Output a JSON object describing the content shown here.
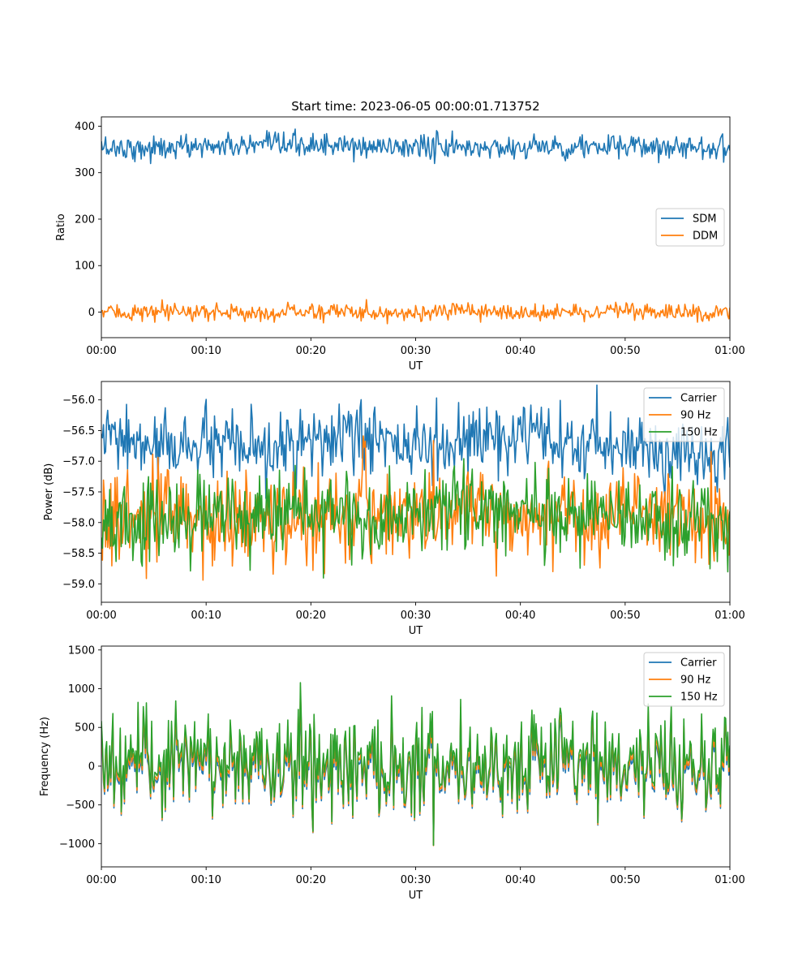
{
  "figure": {
    "title": "Start time: 2023-06-05 00:00:01.713752"
  },
  "colors": {
    "blue": "#1f77b4",
    "orange": "#ff7f0e",
    "green": "#2ca02c"
  },
  "chart_data": [
    {
      "type": "line",
      "title": "Start time: 2023-06-05 00:00:01.713752",
      "xlabel": "UT",
      "ylabel": "Ratio",
      "x_unit": "minutes after 00:00",
      "xlim": [
        0,
        60
      ],
      "ylim": [
        -55,
        420
      ],
      "xticks": [
        0,
        10,
        20,
        30,
        40,
        50,
        60
      ],
      "xtick_labels": [
        "00:00",
        "00:10",
        "00:20",
        "00:30",
        "00:40",
        "00:50",
        "01:00"
      ],
      "yticks": [
        0,
        100,
        200,
        300,
        400
      ],
      "ytick_labels": [
        "0",
        "100",
        "200",
        "300",
        "400"
      ],
      "grid": false,
      "legend": "center-right",
      "series": [
        {
          "name": "SDM",
          "color": "#1f77b4",
          "x": [
            0,
            5,
            10,
            15,
            20,
            25,
            30,
            35,
            40,
            45,
            50,
            55,
            60
          ],
          "values": [
            355,
            352,
            358,
            356,
            360,
            354,
            357,
            353,
            355,
            356,
            354,
            357,
            352
          ]
        },
        {
          "name": "DDM",
          "color": "#ff7f0e",
          "x": [
            0,
            5,
            10,
            15,
            20,
            25,
            30,
            35,
            40,
            45,
            50,
            55,
            60
          ],
          "values": [
            0,
            -2,
            1,
            -3,
            2,
            0,
            -1,
            1,
            -2,
            0,
            1,
            -3,
            2
          ]
        }
      ]
    },
    {
      "type": "line",
      "xlabel": "UT",
      "ylabel": "Power (dB)",
      "x_unit": "minutes after 00:00",
      "xlim": [
        0,
        60
      ],
      "ylim": [
        -59.3,
        -55.7
      ],
      "xticks": [
        0,
        10,
        20,
        30,
        40,
        50,
        60
      ],
      "xtick_labels": [
        "00:00",
        "00:10",
        "00:20",
        "00:30",
        "00:40",
        "00:50",
        "01:00"
      ],
      "yticks": [
        -59.0,
        -58.5,
        -58.0,
        -57.5,
        -57.0,
        -56.5,
        -56.0
      ],
      "ytick_labels": [
        "−59.0",
        "−58.5",
        "−58.0",
        "−57.5",
        "−57.0",
        "−56.5",
        "−56.0"
      ],
      "grid": false,
      "legend": "top-right",
      "series": [
        {
          "name": "Carrier",
          "color": "#1f77b4",
          "x": [
            0,
            5,
            10,
            15,
            20,
            25,
            30,
            35,
            40,
            45,
            50,
            55,
            60
          ],
          "values": [
            -56.6,
            -56.8,
            -56.7,
            -56.9,
            -56.7,
            -56.6,
            -56.8,
            -56.7,
            -56.6,
            -56.8,
            -56.7,
            -56.9,
            -56.9
          ]
        },
        {
          "name": "90 Hz",
          "color": "#ff7f0e",
          "x": [
            0,
            5,
            10,
            15,
            20,
            25,
            30,
            35,
            40,
            45,
            50,
            55,
            60
          ],
          "values": [
            -58.0,
            -57.9,
            -58.0,
            -57.9,
            -58.0,
            -57.8,
            -57.9,
            -57.8,
            -57.9,
            -57.8,
            -57.9,
            -57.9,
            -58.0
          ]
        },
        {
          "name": "150 Hz",
          "color": "#2ca02c",
          "x": [
            0,
            5,
            10,
            15,
            20,
            25,
            30,
            35,
            40,
            45,
            50,
            55,
            60
          ],
          "values": [
            -58.0,
            -58.0,
            -57.9,
            -57.9,
            -57.8,
            -57.9,
            -57.8,
            -57.8,
            -57.8,
            -57.9,
            -57.9,
            -58.0,
            -58.0
          ]
        }
      ]
    },
    {
      "type": "line",
      "xlabel": "UT",
      "ylabel": "Frequency (Hz)",
      "x_unit": "minutes after 00:00",
      "xlim": [
        0,
        60
      ],
      "ylim": [
        -1300,
        1550
      ],
      "xticks": [
        0,
        10,
        20,
        30,
        40,
        50,
        60
      ],
      "xtick_labels": [
        "00:00",
        "00:10",
        "00:20",
        "00:30",
        "00:40",
        "00:50",
        "01:00"
      ],
      "yticks": [
        -1000,
        -500,
        0,
        500,
        1000,
        1500
      ],
      "ytick_labels": [
        "−1000",
        "−500",
        "0",
        "500",
        "1000",
        "1500"
      ],
      "grid": false,
      "legend": "top-right",
      "series": [
        {
          "name": "Carrier",
          "color": "#1f77b4",
          "x": [
            0,
            5,
            10,
            15,
            20,
            25,
            30,
            35,
            40,
            45,
            50,
            55,
            60
          ],
          "values": [
            -50,
            -40,
            -30,
            -60,
            -20,
            -50,
            -40,
            -30,
            -50,
            -40,
            -30,
            -60,
            -40
          ]
        },
        {
          "name": "90 Hz",
          "color": "#ff7f0e",
          "x": [
            0,
            5,
            10,
            15,
            20,
            25,
            30,
            35,
            40,
            45,
            50,
            55,
            60
          ],
          "values": [
            0,
            10,
            20,
            -10,
            30,
            0,
            10,
            20,
            0,
            10,
            20,
            -10,
            10
          ]
        },
        {
          "name": "150 Hz",
          "color": "#2ca02c",
          "x": [
            0,
            5,
            10,
            15,
            20,
            25,
            30,
            35,
            40,
            45,
            50,
            55,
            60
          ],
          "values": [
            60,
            70,
            80,
            50,
            90,
            60,
            70,
            80,
            60,
            70,
            80,
            50,
            70
          ]
        }
      ]
    }
  ]
}
